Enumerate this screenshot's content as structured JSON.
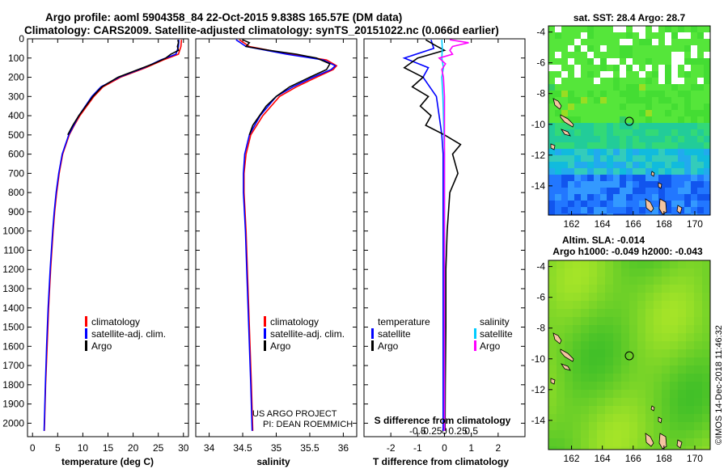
{
  "header": {
    "title_line1": "Argo profile: aoml 5904358_84 22-Oct-2015 9.838S 165.57E (DM data)",
    "title_line2": "Climatology: CARS2009. Satellite-adjusted climatology: synTS_20151022.nc (0.066d earlier)"
  },
  "colors": {
    "climatology": "#ff0000",
    "satellite": "#0000ff",
    "argo": "#000000",
    "sat_salinity": "#00ccff",
    "argo_salinity": "#ff00ff"
  },
  "chart_data": [
    {
      "type": "line",
      "name": "temperature",
      "xlabel": "temperature (deg C)",
      "ylabel": "",
      "xlim": [
        -1,
        31
      ],
      "ylim": [
        2070,
        0
      ],
      "xticks": [
        0,
        5,
        10,
        15,
        20,
        25,
        30
      ],
      "yticks": [
        0,
        100,
        200,
        300,
        400,
        500,
        600,
        700,
        800,
        900,
        1000,
        1100,
        1200,
        1300,
        1400,
        1500,
        1600,
        1700,
        1800,
        1900,
        2000
      ],
      "legend": [
        "climatology",
        "satellite-adj. clim.",
        "Argo"
      ],
      "series": [
        {
          "name": "climatology",
          "depth": [
            5,
            40,
            80,
            110,
            150,
            200,
            250,
            300,
            350,
            400,
            450,
            500,
            600,
            700,
            800,
            900,
            1000,
            1200,
            1400,
            1600,
            1800,
            2000,
            2040
          ],
          "values": [
            29.6,
            29.5,
            29.0,
            26.0,
            22.5,
            17.5,
            14.0,
            12.2,
            10.8,
            9.4,
            8.3,
            7.3,
            6.0,
            5.3,
            4.8,
            4.4,
            4.1,
            3.6,
            3.2,
            2.9,
            2.6,
            2.4,
            2.35
          ]
        },
        {
          "name": "satellite",
          "depth": [
            5,
            40,
            80,
            110,
            150,
            200,
            250,
            300,
            350,
            400,
            450,
            500,
            600,
            700,
            800,
            900,
            1000,
            1200,
            1400,
            1600,
            1800,
            2000,
            2040
          ],
          "values": [
            29.1,
            29.0,
            28.5,
            25.5,
            22.2,
            17.2,
            13.6,
            11.8,
            10.5,
            9.2,
            8.2,
            7.2,
            5.9,
            5.2,
            4.7,
            4.3,
            4.0,
            3.5,
            3.1,
            2.8,
            2.55,
            2.35,
            2.3
          ]
        },
        {
          "name": "Argo",
          "depth": [
            5,
            20,
            40,
            60,
            80,
            100,
            130,
            160,
            200,
            250,
            300,
            350,
            400,
            450,
            500
          ],
          "values": [
            28.9,
            29.0,
            28.8,
            29.0,
            27.5,
            26.5,
            24.0,
            21.0,
            17.0,
            13.8,
            12.0,
            10.6,
            9.2,
            8.0,
            7.0
          ]
        }
      ]
    },
    {
      "type": "line",
      "name": "salinity",
      "xlabel": "salinity",
      "xlim": [
        33.8,
        36.2
      ],
      "ylim": [
        2070,
        0
      ],
      "xticks": [
        34,
        34.5,
        35,
        35.5,
        36
      ],
      "xticklabels": [
        "34",
        "34.5",
        "35",
        "35.5",
        "36"
      ],
      "legend": [
        "climatology",
        "satellite-adj. clim.",
        "Argo"
      ],
      "series": [
        {
          "name": "climatology",
          "depth": [
            5,
            40,
            80,
            110,
            140,
            160,
            200,
            250,
            300,
            400,
            500,
            600,
            700,
            800,
            1000,
            1200,
            1500,
            1800,
            2040
          ],
          "values": [
            34.45,
            34.6,
            35.2,
            35.75,
            35.9,
            35.85,
            35.6,
            35.3,
            35.05,
            34.8,
            34.62,
            34.55,
            34.52,
            34.52,
            34.55,
            34.57,
            34.6,
            34.63,
            34.65
          ]
        },
        {
          "name": "satellite",
          "depth": [
            5,
            40,
            80,
            110,
            140,
            160,
            200,
            250,
            300,
            400,
            500,
            600,
            700,
            800,
            1000,
            1200,
            1500,
            1800,
            2040
          ],
          "values": [
            34.4,
            34.55,
            35.15,
            35.7,
            35.88,
            35.82,
            35.55,
            35.25,
            35.0,
            34.76,
            34.6,
            34.53,
            34.51,
            34.51,
            34.54,
            34.56,
            34.59,
            34.62,
            34.64
          ]
        },
        {
          "name": "Argo",
          "depth": [
            5,
            20,
            40,
            60,
            80,
            100,
            130,
            160,
            200,
            250,
            300,
            350,
            400,
            450,
            500
          ],
          "values": [
            34.5,
            34.6,
            34.55,
            34.9,
            35.3,
            35.6,
            35.8,
            35.75,
            35.5,
            35.2,
            35.0,
            34.85,
            34.75,
            34.65,
            34.6
          ]
        }
      ]
    },
    {
      "type": "line",
      "name": "difference",
      "xlabel": "T difference from climatology",
      "xlabel2": "S difference from climatology",
      "xlim": [
        -3,
        3
      ],
      "ylim": [
        2070,
        0
      ],
      "xticks": [
        -2,
        -1,
        0,
        1,
        2
      ],
      "xticks2": [
        -0.5,
        -0.25,
        0,
        0.25,
        0.5
      ],
      "xticklabels2": [
        "-0.5",
        "-0.25",
        "0",
        "0.25",
        "0.5"
      ],
      "legend": [
        "temperature",
        "satellite",
        "Argo",
        "salinity",
        "satellite",
        "Argo"
      ],
      "series": [
        {
          "name": "T satellite",
          "depth": [
            5,
            50,
            100,
            150,
            200,
            300,
            400,
            500,
            600,
            800,
            1000,
            1500,
            2040
          ],
          "values": [
            -0.5,
            -0.4,
            -1.5,
            -0.6,
            -0.8,
            -0.3,
            -0.2,
            -0.1,
            -0.05,
            -0.05,
            -0.05,
            -0.05,
            -0.05
          ]
        },
        {
          "name": "T Argo",
          "depth": [
            5,
            30,
            60,
            100,
            150,
            200,
            250,
            300,
            350,
            400,
            450,
            500,
            550,
            600,
            700,
            800,
            1000,
            1200,
            1500,
            1800,
            2040
          ],
          "values": [
            -0.7,
            -0.4,
            0.0,
            -1.0,
            -1.5,
            -0.8,
            -1.2,
            -0.6,
            -0.9,
            -0.5,
            -0.7,
            0.0,
            0.6,
            0.3,
            0.5,
            0.2,
            0.1,
            0.05,
            0.05,
            0.03,
            0.02
          ]
        },
        {
          "name": "S satellite",
          "depth": [
            5,
            50,
            100,
            150,
            200,
            300,
            400,
            500,
            600,
            800,
            1000,
            1500,
            2040
          ],
          "values": [
            -0.05,
            -0.04,
            -0.05,
            -0.02,
            -0.05,
            -0.03,
            -0.02,
            -0.01,
            0,
            0,
            0,
            0,
            0
          ]
        },
        {
          "name": "S Argo",
          "depth": [
            5,
            20,
            30,
            40,
            60,
            80,
            100,
            130,
            160,
            200,
            300,
            500,
            600,
            1000,
            2040
          ],
          "values": [
            0.1,
            0.45,
            0.3,
            0.15,
            0.1,
            0.15,
            -0.1,
            0.02,
            -0.05,
            -0.02,
            0,
            0,
            0,
            0,
            0
          ]
        }
      ]
    },
    {
      "type": "heatmap",
      "name": "sst-map",
      "title": "sat. SST: 28.4 Argo: 28.7",
      "xticks": [
        162,
        164,
        166,
        168,
        170
      ],
      "yticks": [
        -4,
        -6,
        -8,
        -10,
        -12,
        -14
      ],
      "xlim": [
        160.5,
        171
      ],
      "ylim": [
        -15.9,
        -3.6
      ],
      "float_position": [
        165.57,
        -9.838
      ]
    },
    {
      "type": "heatmap",
      "name": "sla-map",
      "title": "Altim. SLA: -0.014",
      "subtitle": "Argo h1000: -0.049 h2000: -0.043",
      "xticks": [
        162,
        164,
        166,
        168,
        170
      ],
      "yticks": [
        -4,
        -6,
        -8,
        -10,
        -12,
        -14
      ],
      "xlim": [
        160.5,
        171
      ],
      "ylim": [
        -15.9,
        -3.6
      ],
      "float_position": [
        165.57,
        -9.838
      ]
    }
  ],
  "annotations": {
    "project_line1": "US ARGO PROJECT",
    "project_line2": "PI: DEAN ROEMMICH",
    "imos_credit": "©IMOS 14-Dec-2018 11:46:32"
  }
}
